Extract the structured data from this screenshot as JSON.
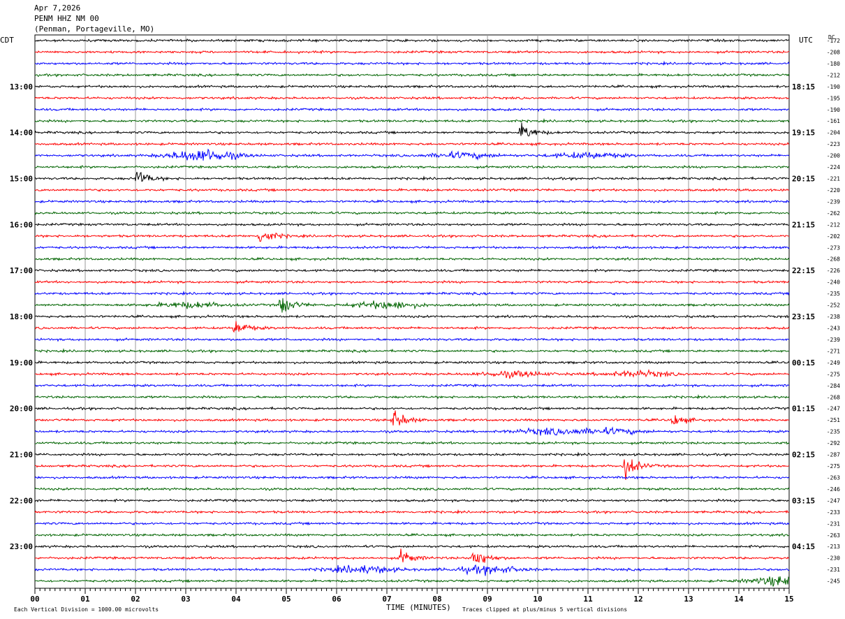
{
  "header": {
    "date": "Apr 7,2026",
    "station": "PENM HHZ NM 00",
    "location": "(Penman, Portageville, MO)"
  },
  "left_tz": "CDT",
  "right_tz": "UTC",
  "dc_label": "DC",
  "footer": {
    "xlabel": "TIME (MINUTES)",
    "scale_note": "Each Vertical Division = 1000.00 microvolts",
    "clip_note": "Traces clipped at plus/minus 5 vertical divisions"
  },
  "chart_data": {
    "type": "line",
    "title": "PENM HHZ NM 00",
    "xlabel": "TIME (MINUTES)",
    "xlim": [
      0,
      15
    ],
    "x_ticks": [
      "00",
      "01",
      "02",
      "03",
      "04",
      "05",
      "06",
      "07",
      "08",
      "09",
      "10",
      "11",
      "12",
      "13",
      "14",
      "15"
    ],
    "left_hour_labels": [
      "13:00",
      "14:00",
      "15:00",
      "16:00",
      "17:00",
      "18:00",
      "19:00",
      "20:00",
      "21:00",
      "22:00",
      "23:00"
    ],
    "right_hour_labels": [
      "18:15",
      "19:15",
      "20:15",
      "21:15",
      "22:15",
      "23:15",
      "00:15",
      "01:15",
      "02:15",
      "03:15",
      "04:15"
    ],
    "first_labeled_trace": 4,
    "traces_per_hour": 4,
    "trace_count": 48,
    "trace_colors": [
      "#000000",
      "#ff0000",
      "#0000ff",
      "#006400"
    ],
    "dc_offsets": [
      -172,
      -208,
      -180,
      -212,
      -190,
      -195,
      -190,
      -161,
      -204,
      -223,
      -200,
      -224,
      -221,
      -220,
      -239,
      -262,
      -212,
      -202,
      -273,
      -268,
      -226,
      -240,
      -235,
      -252,
      -238,
      -243,
      -239,
      -271,
      -249,
      -275,
      -284,
      -268,
      -247,
      -251,
      -235,
      -292,
      -287,
      -275,
      -263,
      -246,
      -247,
      -233,
      -231,
      -263,
      -213,
      -230,
      -231,
      -245
    ],
    "events": [
      {
        "trace": 8,
        "minute": 9.7,
        "amplitude": 12
      },
      {
        "trace": 10,
        "minute": 3.35,
        "amplitude": 7
      },
      {
        "trace": 10,
        "minute": 8.5,
        "amplitude": 3
      },
      {
        "trace": 10,
        "minute": 11.0,
        "amplitude": 3
      },
      {
        "trace": 12,
        "minute": 2.05,
        "amplitude": 11
      },
      {
        "trace": 17,
        "minute": 4.5,
        "amplitude": 12
      },
      {
        "trace": 23,
        "minute": 3.1,
        "amplitude": 3
      },
      {
        "trace": 23,
        "minute": 4.9,
        "amplitude": 14
      },
      {
        "trace": 23,
        "minute": 7.0,
        "amplitude": 4
      },
      {
        "trace": 25,
        "minute": 4.0,
        "amplitude": 10
      },
      {
        "trace": 29,
        "minute": 9.5,
        "amplitude": 3
      },
      {
        "trace": 29,
        "minute": 12.0,
        "amplitude": 3
      },
      {
        "trace": 33,
        "minute": 7.15,
        "amplitude": 13
      },
      {
        "trace": 33,
        "minute": 12.7,
        "amplitude": 8
      },
      {
        "trace": 34,
        "minute": 10.2,
        "amplitude": 3
      },
      {
        "trace": 34,
        "minute": 11.4,
        "amplitude": 3
      },
      {
        "trace": 37,
        "minute": 11.75,
        "amplitude": 15
      },
      {
        "trace": 45,
        "minute": 7.3,
        "amplitude": 10
      },
      {
        "trace": 45,
        "minute": 8.75,
        "amplitude": 15
      },
      {
        "trace": 46,
        "minute": 6.5,
        "amplitude": 4
      },
      {
        "trace": 46,
        "minute": 9.0,
        "amplitude": 4
      },
      {
        "trace": 47,
        "minute": 14.9,
        "amplitude": 5
      }
    ]
  }
}
